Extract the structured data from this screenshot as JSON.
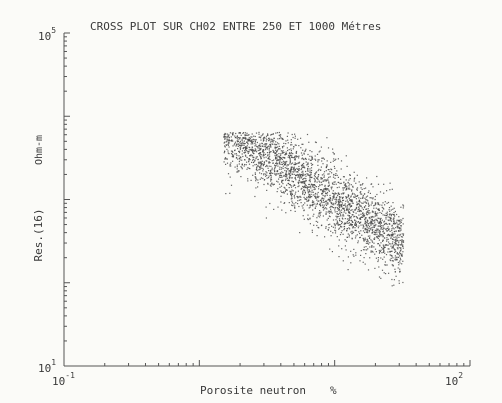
{
  "chart_data": {
    "type": "scatter",
    "title": "CROSS PLOT SUR CH02 ENTRE 250 ET 1000 Métres",
    "xlabel": "Porosite neutron",
    "xunit": "%",
    "ylabel": "Res.(16)",
    "yunit": "Ohm-m",
    "x_scale": "log",
    "y_scale": "log",
    "xlim": [
      0.1,
      100
    ],
    "ylim": [
      10,
      100000
    ],
    "x_tick_labels": [
      {
        "value": 0.1,
        "base": "10",
        "exp": "-1"
      },
      {
        "value": 100,
        "base": "10",
        "exp": "2"
      }
    ],
    "y_tick_labels": [
      {
        "value": 10,
        "base": "10",
        "exp": "1"
      },
      {
        "value": 100000,
        "base": "10",
        "exp": "5"
      }
    ],
    "grid": false,
    "marker_color": "#4a4a4a",
    "cloud": {
      "description_points": [
        {
          "x": 2.5,
          "y": 4500
        },
        {
          "x": 4.0,
          "y": 3000
        },
        {
          "x": 6.0,
          "y": 1600
        },
        {
          "x": 10.0,
          "y": 700
        },
        {
          "x": 18.0,
          "y": 300
        },
        {
          "x": 28.0,
          "y": 200
        }
      ],
      "x_range": [
        1.5,
        32
      ],
      "y_range": [
        60,
        6500
      ],
      "slope": -1.05,
      "spread": 0.22,
      "n_points": 2600
    }
  }
}
